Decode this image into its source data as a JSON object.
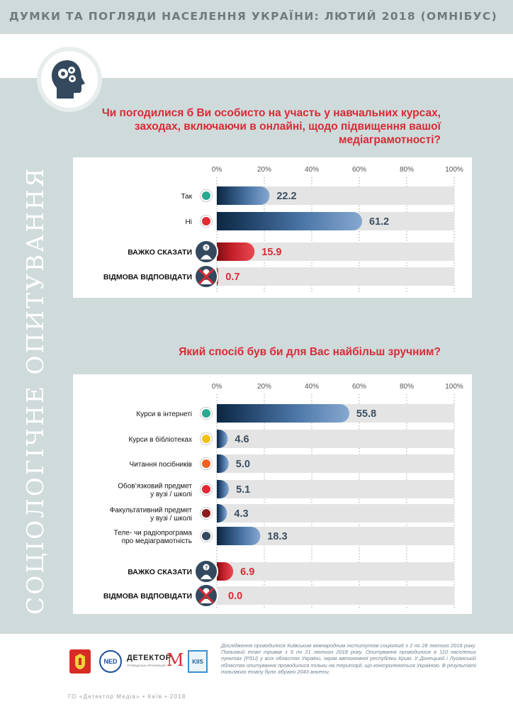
{
  "header": {
    "title": "ДУМКИ ТА ПОГЛЯДИ НАСЕЛЕННЯ УКРАЇНИ: ЛЮТИЙ 2018 (ОМНІБУС)"
  },
  "sidebar": {
    "vertical_title": "СОЦІОЛОГІЧНЕ ОПИТУВАННЯ"
  },
  "icon": {
    "name": "head-gears-icon"
  },
  "colors": {
    "accent_red": "#d82b35",
    "bar_blue": "#4c75a6",
    "panel_bg": "#cfdadb",
    "dot_teal": "#2aa890",
    "dot_yellow": "#f2c21b",
    "dot_orange": "#f26122",
    "dot_red": "#e12a36",
    "dot_darkred": "#8c1d1d",
    "dot_navy": "#34495e"
  },
  "chart_data": [
    {
      "type": "bar",
      "orientation": "horizontal",
      "title": "Чи погодилися б Ви особисто на участь у навчальних курсах, заходах, включаючи в онлайні, щодо підвищення вашої медіаграмотності?",
      "xlim": [
        0,
        100
      ],
      "ticks": [
        "0%",
        "20%",
        "40%",
        "60%",
        "80%",
        "100%"
      ],
      "grid": true,
      "categories": [
        "Так",
        "Ні",
        "ВАЖКО СКАЗАТИ",
        "ВІДМОВА ВІДПОВІДАТИ"
      ],
      "values": [
        22.2,
        61.2,
        15.9,
        0.7
      ],
      "labels": [
        "22.2",
        "61.2",
        "15.9",
        "0.7"
      ],
      "styles": [
        "blue",
        "blue",
        "red",
        "red"
      ],
      "markers": [
        "dot_teal",
        "dot_red",
        "question-person-icon",
        "no-answer-person-icon"
      ]
    },
    {
      "type": "bar",
      "orientation": "horizontal",
      "title": "Який спосіб був би для Вас найбільш зручним?",
      "xlim": [
        0,
        100
      ],
      "ticks": [
        "0%",
        "20%",
        "40%",
        "60%",
        "80%",
        "100%"
      ],
      "grid": true,
      "categories": [
        [
          "Курси в інтернеті"
        ],
        [
          "Курси в бібліотеках"
        ],
        [
          "Читання посібників"
        ],
        [
          "Обов’язковий предмет",
          "у вузі / школі"
        ],
        [
          "Факультативний предмет",
          "у вузі / школі"
        ],
        [
          "Теле- чи радіопрограма",
          "про медіаграмотність"
        ],
        [
          "ВАЖКО СКАЗАТИ"
        ],
        [
          "ВІДМОВА ВІДПОВІДАТИ"
        ]
      ],
      "values": [
        55.8,
        4.6,
        5.0,
        5.1,
        4.3,
        18.3,
        6.9,
        0.0
      ],
      "labels": [
        "55.8",
        "4.6",
        "5.0",
        "5.1",
        "4.3",
        "18.3",
        "6.9",
        "0.0"
      ],
      "styles": [
        "blue",
        "blue",
        "blue",
        "blue",
        "blue",
        "blue",
        "red",
        "red"
      ],
      "markers": [
        "dot_teal",
        "dot_yellow",
        "dot_orange",
        "dot_red",
        "dot_darkred",
        "dot_navy",
        "question-person-icon",
        "no-answer-person-icon"
      ]
    }
  ],
  "footnote": "Дослідження проводилося Київським міжнародним інститутом соціології з 2 по 28 лютого 2018 року. Польовий етап тривав з 9 по 21 лютого 2018 року. Опитування проводилося в 110 населених пунктах (PSU) у всіх областях України, окрім автономної республіки Крим. У Донецькій і Луганській областях опитування проводилися тільки на території, що контролюються Україною. В результаті польового етапу було зібрано 2043 анкети.",
  "logos": {
    "ned": "NED",
    "detector": "ДЕТЕКТОР",
    "detector_sub": "ГРОМАДСЬКА ОРГАНІЗАЦІЯ",
    "detector_m": "M",
    "kiis": "KIIS"
  },
  "bottom_line": "ГО «Детектор Медіа» • Київ • 2018"
}
